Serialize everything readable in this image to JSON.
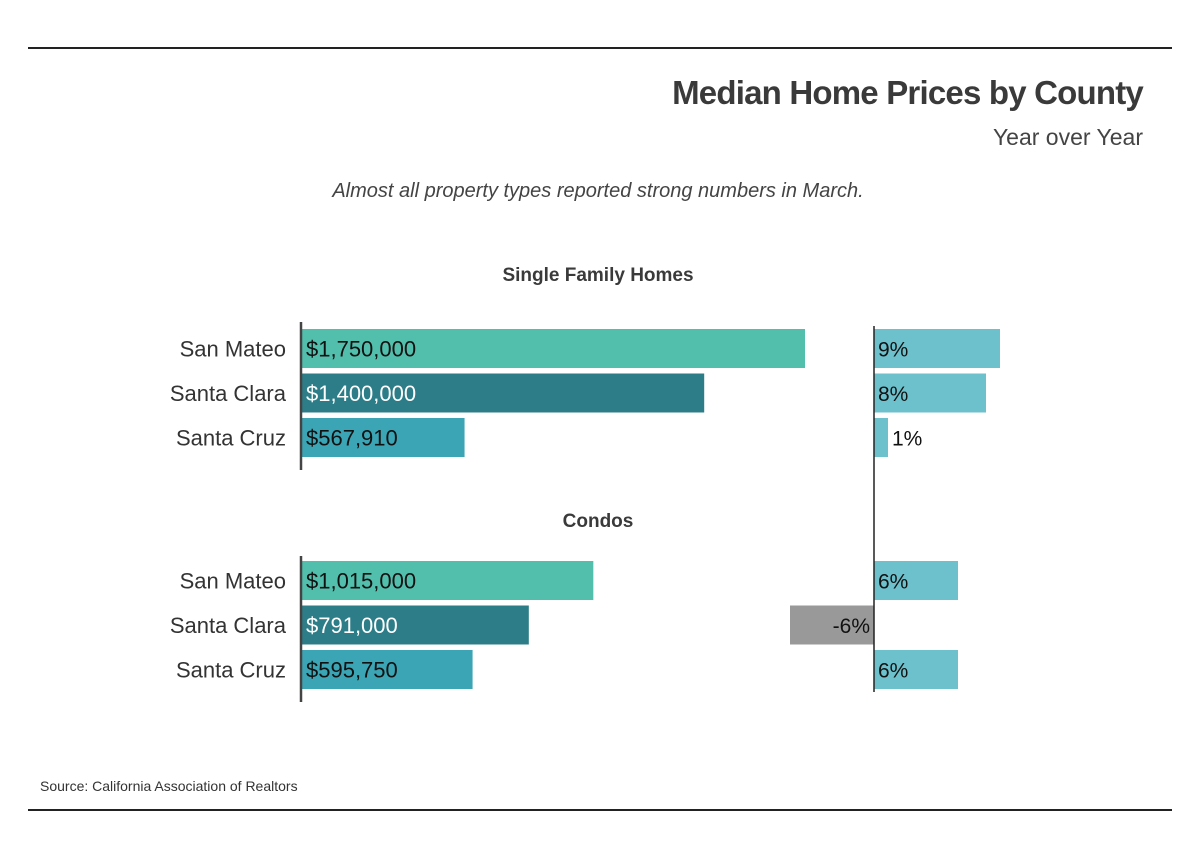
{
  "header": {
    "title": "Median Home Prices by County",
    "subtitle": "Year over Year",
    "note": "Almost all property types reported strong numbers in March."
  },
  "footer": {
    "source": "Source:  California Association of Realtors"
  },
  "colors": {
    "San Mateo": "#52bfad",
    "Santa Clara": "#2d7d88",
    "Santa Cruz": "#3ba5b5",
    "pct_positive": "#6cc1cc",
    "pct_negative": "#999999"
  },
  "chart_data": [
    {
      "type": "bar",
      "orientation": "horizontal",
      "title": "Single Family Homes",
      "categories": [
        "San Mateo",
        "Santa Clara",
        "Santa Cruz"
      ],
      "series": [
        {
          "values": [
            1750000,
            1400000,
            567910
          ],
          "labels": [
            "$1,750,000",
            "$1,400,000",
            "$567,910"
          ]
        },
        {
          "values": [
            9,
            8,
            1
          ],
          "labels": [
            "9%",
            "8%",
            "1%"
          ]
        }
      ]
    },
    {
      "type": "bar",
      "orientation": "horizontal",
      "title": "Condos",
      "categories": [
        "San Mateo",
        "Santa Clara",
        "Santa Cruz"
      ],
      "series": [
        {
          "values": [
            1015000,
            791000,
            595750
          ],
          "labels": [
            "$1,015,000",
            "$791,000",
            "$595,750"
          ]
        },
        {
          "values": [
            6,
            -6,
            6
          ],
          "labels": [
            "6%",
            "-6%",
            "6%"
          ]
        }
      ]
    }
  ]
}
